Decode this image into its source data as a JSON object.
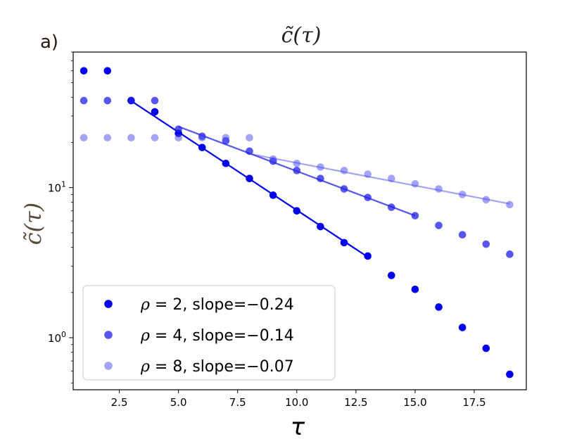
{
  "chart_data": {
    "type": "scatter",
    "panel_label": "a)",
    "title": "c̃(τ)",
    "xlabel": "τ",
    "ylabel": "c̃(τ)",
    "yscale": "log",
    "xlim": [
      0.55,
      19.7
    ],
    "ylim": [
      0.45,
      80
    ],
    "xticks": [
      2.5,
      5.0,
      7.5,
      10.0,
      12.5,
      15.0,
      17.5
    ],
    "xtick_labels": [
      "2.5",
      "5.0",
      "7.5",
      "10.0",
      "12.5",
      "15.0",
      "17.5"
    ],
    "yticks": [
      {
        "value": 1,
        "base": "10",
        "exp": "0"
      },
      {
        "value": 10,
        "base": "10",
        "exp": "1"
      }
    ],
    "legend_position": "lower-left",
    "series": [
      {
        "name": "rho2",
        "rho": "2",
        "slope": "−0.24",
        "legend_rest": ", slope=",
        "color": "#0000ee",
        "opacity": 1.0,
        "x": [
          1,
          2,
          3,
          4,
          5,
          6,
          7,
          8,
          9,
          10,
          11,
          12,
          13,
          14,
          15,
          16,
          17,
          18,
          19
        ],
        "y": [
          60,
          60,
          38,
          32,
          23,
          18.5,
          14.5,
          11.5,
          8.9,
          7.0,
          5.5,
          4.3,
          3.5,
          2.6,
          2.1,
          1.6,
          1.17,
          0.85,
          0.57
        ],
        "fit": {
          "x": [
            3,
            13
          ],
          "y": [
            37.8,
            3.45
          ]
        }
      },
      {
        "name": "rho4",
        "rho": "4",
        "slope": "−0.14",
        "legend_rest": ", slope=",
        "color": "#1f1fe8",
        "opacity": 0.75,
        "x": [
          1,
          2,
          3,
          4,
          5,
          6,
          7,
          8,
          9,
          10,
          11,
          12,
          13,
          14,
          15,
          16,
          17,
          18,
          19
        ],
        "y": [
          38,
          38,
          38,
          38,
          24.5,
          22,
          20.5,
          17.5,
          15,
          13,
          11.5,
          9.8,
          8.6,
          7.4,
          6.5,
          5.6,
          4.85,
          4.2,
          3.6
        ],
        "fit": {
          "x": [
            5,
            15
          ],
          "y": [
            25.5,
            6.5
          ]
        }
      },
      {
        "name": "rho8",
        "rho": "8",
        "slope": "−0.07",
        "legend_rest": ", slope=",
        "color": "#4a4af0",
        "opacity": 0.5,
        "x": [
          1,
          2,
          3,
          4,
          5,
          6,
          7,
          8,
          9,
          10,
          11,
          12,
          13,
          14,
          15,
          16,
          17,
          18,
          19
        ],
        "y": [
          21.5,
          21.5,
          21.5,
          21.5,
          21.5,
          21.5,
          21.5,
          21.5,
          15.5,
          14.5,
          13.7,
          13.0,
          12.3,
          11.5,
          10.6,
          9.8,
          9.0,
          8.3,
          7.7
        ],
        "fit": {
          "x": [
            8,
            19
          ],
          "y": [
            16.8,
            7.8
          ]
        }
      }
    ]
  }
}
